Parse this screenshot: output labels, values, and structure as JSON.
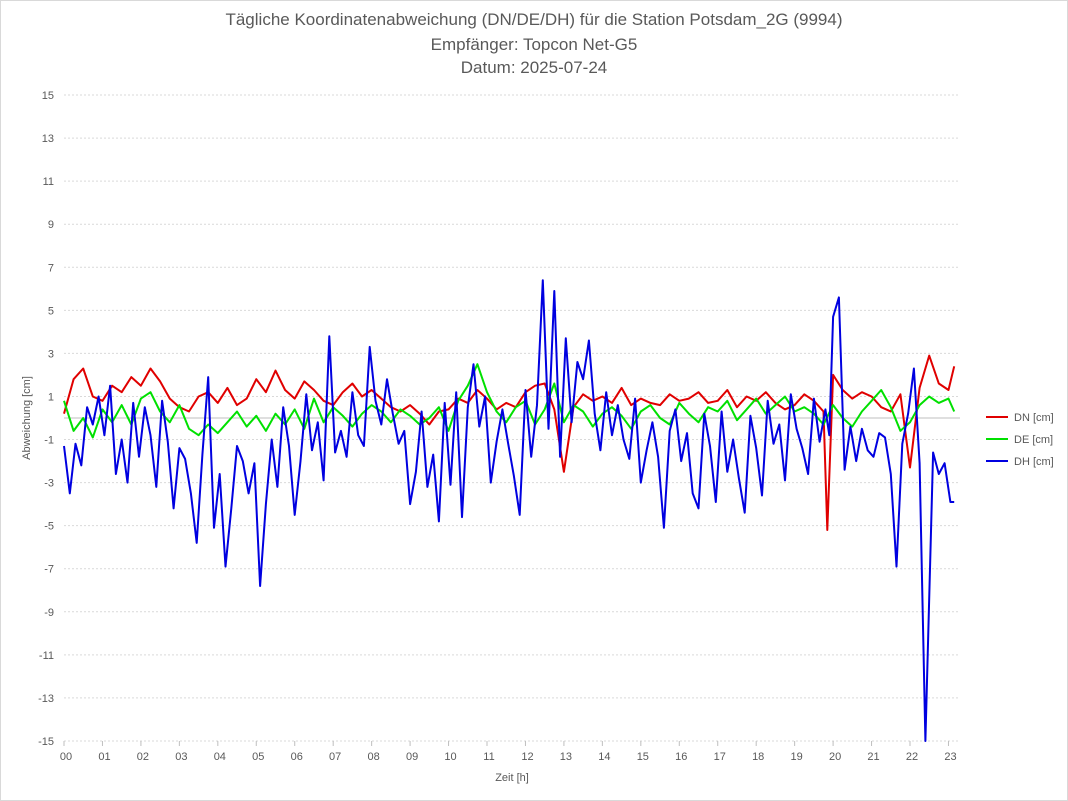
{
  "chart_data": {
    "type": "line",
    "title": "Tägliche Koordinatenabweichung (DN/DE/DH) für die Station Potsdam_2G (9994)",
    "subtitle1": "Empfänger: Topcon Net-G5",
    "subtitle2": "Datum: 2025-07-24",
    "xlabel": "Zeit [h]",
    "ylabel": "Abweichung [cm]",
    "xlim": [
      0,
      23.3
    ],
    "ylim": [
      -15,
      15
    ],
    "xticks": [
      "00",
      "01",
      "02",
      "03",
      "04",
      "05",
      "06",
      "07",
      "08",
      "09",
      "10",
      "11",
      "12",
      "13",
      "14",
      "15",
      "16",
      "17",
      "18",
      "19",
      "20",
      "21",
      "22",
      "23"
    ],
    "yticks": [
      15,
      13,
      11,
      9,
      7,
      5,
      3,
      1,
      -1,
      -3,
      -5,
      -7,
      -9,
      -11,
      -13,
      -15
    ],
    "grid": true,
    "legend_position": "right",
    "series": [
      {
        "name": "DN [cm]",
        "color": "#e00000",
        "x": [
          0.0,
          0.25,
          0.5,
          0.75,
          1.0,
          1.25,
          1.5,
          1.75,
          2.0,
          2.25,
          2.5,
          2.75,
          3.0,
          3.25,
          3.5,
          3.75,
          4.0,
          4.25,
          4.5,
          4.75,
          5.0,
          5.25,
          5.5,
          5.75,
          6.0,
          6.25,
          6.5,
          6.75,
          7.0,
          7.25,
          7.5,
          7.75,
          8.0,
          8.25,
          8.5,
          8.75,
          9.0,
          9.25,
          9.5,
          9.75,
          10.0,
          10.25,
          10.5,
          10.75,
          11.0,
          11.25,
          11.5,
          11.75,
          12.0,
          12.25,
          12.5,
          12.75,
          13.0,
          13.25,
          13.5,
          13.75,
          14.0,
          14.25,
          14.5,
          14.75,
          15.0,
          15.25,
          15.5,
          15.75,
          16.0,
          16.25,
          16.5,
          16.75,
          17.0,
          17.25,
          17.5,
          17.75,
          18.0,
          18.25,
          18.5,
          18.75,
          19.0,
          19.25,
          19.5,
          19.75,
          19.85,
          20.0,
          20.25,
          20.5,
          20.75,
          21.0,
          21.25,
          21.5,
          21.75,
          22.0,
          22.25,
          22.5,
          22.75,
          23.0,
          23.15
        ],
        "values": [
          0.2,
          1.8,
          2.3,
          1.0,
          0.8,
          1.5,
          1.2,
          1.9,
          1.5,
          2.3,
          1.7,
          0.9,
          0.5,
          0.3,
          1.0,
          1.2,
          0.7,
          1.4,
          0.6,
          0.9,
          1.8,
          1.2,
          2.2,
          1.3,
          0.9,
          1.7,
          1.3,
          0.8,
          0.6,
          1.2,
          1.6,
          1.0,
          1.3,
          0.9,
          0.5,
          0.3,
          0.6,
          0.2,
          -0.3,
          0.3,
          0.4,
          0.9,
          0.7,
          1.3,
          0.9,
          0.4,
          0.7,
          0.5,
          1.2,
          1.5,
          1.6,
          0.4,
          -2.5,
          0.5,
          1.1,
          0.8,
          1.0,
          0.7,
          1.4,
          0.6,
          0.9,
          0.7,
          0.6,
          1.1,
          0.8,
          0.9,
          1.2,
          0.7,
          0.8,
          1.3,
          0.5,
          1.0,
          0.8,
          1.2,
          0.7,
          0.4,
          0.6,
          1.1,
          0.8,
          0.3,
          -5.2,
          2.0,
          1.3,
          0.9,
          1.2,
          1.0,
          0.5,
          0.3,
          1.1,
          -2.3,
          1.4,
          2.9,
          1.6,
          1.3,
          2.4
        ]
      },
      {
        "name": "DE [cm]",
        "color": "#00e000",
        "x": [
          0.0,
          0.25,
          0.5,
          0.75,
          1.0,
          1.25,
          1.5,
          1.75,
          2.0,
          2.25,
          2.5,
          2.75,
          3.0,
          3.25,
          3.5,
          3.75,
          4.0,
          4.25,
          4.5,
          4.75,
          5.0,
          5.25,
          5.5,
          5.75,
          6.0,
          6.25,
          6.5,
          6.75,
          7.0,
          7.25,
          7.5,
          7.75,
          8.0,
          8.25,
          8.5,
          8.75,
          9.0,
          9.25,
          9.5,
          9.75,
          10.0,
          10.25,
          10.5,
          10.75,
          11.0,
          11.25,
          11.5,
          11.75,
          12.0,
          12.25,
          12.5,
          12.75,
          13.0,
          13.25,
          13.5,
          13.75,
          14.0,
          14.25,
          14.5,
          14.75,
          15.0,
          15.25,
          15.5,
          15.75,
          16.0,
          16.25,
          16.5,
          16.75,
          17.0,
          17.25,
          17.5,
          17.75,
          18.0,
          18.25,
          18.5,
          18.75,
          19.0,
          19.25,
          19.5,
          19.75,
          20.0,
          20.25,
          20.5,
          20.75,
          21.0,
          21.25,
          21.5,
          21.75,
          22.0,
          22.25,
          22.5,
          22.75,
          23.0,
          23.15
        ],
        "values": [
          0.8,
          -0.6,
          0.0,
          -0.9,
          0.4,
          -0.2,
          0.6,
          -0.3,
          0.9,
          1.2,
          0.3,
          -0.2,
          0.6,
          -0.5,
          -0.8,
          -0.3,
          -0.7,
          -0.2,
          0.3,
          -0.4,
          0.1,
          -0.6,
          0.2,
          -0.3,
          0.4,
          -0.5,
          0.9,
          -0.2,
          0.5,
          0.1,
          -0.4,
          0.2,
          0.6,
          0.3,
          -0.2,
          0.4,
          0.1,
          -0.3,
          0.0,
          0.5,
          -0.6,
          0.8,
          1.5,
          2.5,
          1.2,
          0.3,
          -0.2,
          0.5,
          0.8,
          -0.3,
          0.4,
          1.6,
          -0.2,
          0.6,
          0.3,
          -0.4,
          0.2,
          0.5,
          0.1,
          -0.5,
          0.3,
          0.6,
          0.0,
          -0.3,
          0.7,
          0.2,
          -0.2,
          0.5,
          0.3,
          0.8,
          -0.1,
          0.4,
          0.9,
          0.2,
          0.6,
          1.0,
          0.3,
          0.5,
          0.2,
          -0.3,
          0.6,
          0.0,
          -0.4,
          0.3,
          0.8,
          1.3,
          0.5,
          -0.6,
          -0.2,
          0.6,
          1.0,
          0.7,
          0.9,
          0.3
        ]
      },
      {
        "name": "DH [cm]",
        "color": "#0000e0",
        "x": [
          0.0,
          0.15,
          0.3,
          0.45,
          0.6,
          0.75,
          0.9,
          1.05,
          1.2,
          1.35,
          1.5,
          1.65,
          1.8,
          1.95,
          2.1,
          2.25,
          2.4,
          2.55,
          2.7,
          2.85,
          3.0,
          3.15,
          3.3,
          3.45,
          3.6,
          3.75,
          3.9,
          4.05,
          4.2,
          4.35,
          4.5,
          4.65,
          4.8,
          4.95,
          5.1,
          5.25,
          5.4,
          5.55,
          5.7,
          5.85,
          6.0,
          6.15,
          6.3,
          6.45,
          6.6,
          6.75,
          6.9,
          7.05,
          7.2,
          7.35,
          7.5,
          7.65,
          7.8,
          7.95,
          8.1,
          8.25,
          8.4,
          8.55,
          8.7,
          8.85,
          9.0,
          9.15,
          9.3,
          9.45,
          9.6,
          9.75,
          9.9,
          10.05,
          10.2,
          10.35,
          10.5,
          10.65,
          10.8,
          10.95,
          11.1,
          11.25,
          11.4,
          11.55,
          11.7,
          11.85,
          12.0,
          12.15,
          12.3,
          12.45,
          12.6,
          12.75,
          12.9,
          13.05,
          13.2,
          13.35,
          13.5,
          13.65,
          13.8,
          13.95,
          14.1,
          14.25,
          14.4,
          14.55,
          14.7,
          14.85,
          15.0,
          15.15,
          15.3,
          15.45,
          15.6,
          15.75,
          15.9,
          16.05,
          16.2,
          16.35,
          16.5,
          16.65,
          16.8,
          16.95,
          17.1,
          17.25,
          17.4,
          17.55,
          17.7,
          17.85,
          18.0,
          18.15,
          18.3,
          18.45,
          18.6,
          18.75,
          18.9,
          19.05,
          19.2,
          19.35,
          19.5,
          19.65,
          19.8,
          19.9,
          20.0,
          20.15,
          20.3,
          20.45,
          20.6,
          20.75,
          20.9,
          21.05,
          21.2,
          21.35,
          21.5,
          21.65,
          21.8,
          21.95,
          22.1,
          22.25,
          22.4,
          22.6,
          22.75,
          22.9,
          23.05,
          23.15
        ],
        "values": [
          -1.3,
          -3.5,
          -1.2,
          -2.2,
          0.5,
          -0.3,
          1.0,
          -0.8,
          1.5,
          -2.6,
          -1.0,
          -3.0,
          0.7,
          -1.8,
          0.5,
          -0.8,
          -3.2,
          0.8,
          -1.1,
          -4.2,
          -1.4,
          -1.9,
          -3.5,
          -5.8,
          -1.7,
          1.9,
          -5.1,
          -2.6,
          -6.9,
          -4.2,
          -1.3,
          -2.0,
          -3.5,
          -2.1,
          -7.8,
          -4.0,
          -1.0,
          -3.2,
          0.5,
          -1.3,
          -4.5,
          -2.0,
          1.1,
          -1.5,
          -0.2,
          -2.9,
          3.8,
          -1.6,
          -0.6,
          -1.8,
          1.2,
          -0.8,
          -1.3,
          3.3,
          0.8,
          -0.3,
          1.8,
          0.2,
          -1.2,
          -0.6,
          -4.0,
          -2.5,
          0.3,
          -3.2,
          -1.7,
          -4.8,
          0.7,
          -3.1,
          1.2,
          -4.6,
          0.5,
          2.5,
          -0.4,
          1.0,
          -3.0,
          -1.1,
          0.4,
          -1.2,
          -2.7,
          -4.5,
          1.3,
          -1.8,
          0.6,
          6.4,
          -0.5,
          5.9,
          -1.8,
          3.7,
          -0.2,
          2.6,
          1.8,
          3.6,
          0.2,
          -1.5,
          1.2,
          -0.8,
          0.6,
          -1.0,
          -1.9,
          0.9,
          -3.0,
          -1.5,
          -0.2,
          -1.8,
          -5.1,
          -0.6,
          0.4,
          -2.0,
          -0.7,
          -3.5,
          -4.2,
          0.2,
          -1.3,
          -3.9,
          0.3,
          -2.5,
          -1.0,
          -2.8,
          -4.4,
          0.1,
          -1.4,
          -3.6,
          0.8,
          -1.2,
          -0.3,
          -2.9,
          1.1,
          -0.5,
          -1.4,
          -2.6,
          0.9,
          -1.1,
          0.4,
          -0.8,
          4.7,
          5.6,
          -2.4,
          -0.4,
          -2.0,
          -0.5,
          -1.5,
          -1.8,
          -0.7,
          -0.9,
          -2.6,
          -6.9,
          -1.2,
          0.2,
          2.3,
          -2.1,
          -15.0,
          -1.6,
          -2.6,
          -2.1,
          -3.9,
          -3.9
        ]
      }
    ]
  }
}
